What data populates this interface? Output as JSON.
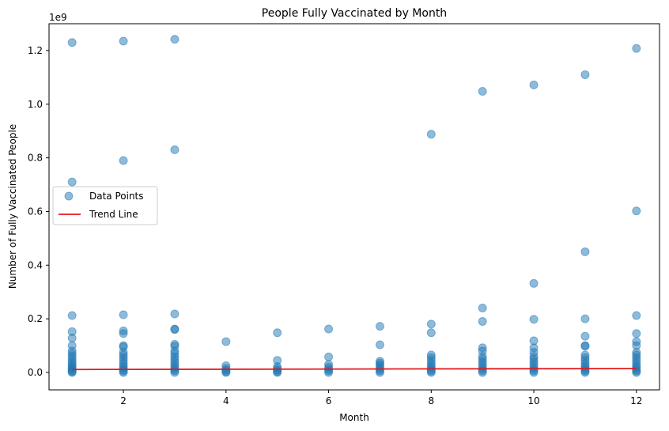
{
  "chart_data": {
    "type": "scatter",
    "title": "People Fully Vaccinated by Month",
    "xlabel": "Month",
    "ylabel": "Number of Fully Vaccinated People",
    "y_offset_label": "1e9",
    "xlim": [
      0.55,
      12.45
    ],
    "ylim": [
      -65000000,
      1300000000
    ],
    "x_ticks": [
      2,
      4,
      6,
      8,
      10,
      12
    ],
    "x_tick_labels": [
      "2",
      "4",
      "6",
      "8",
      "10",
      "12"
    ],
    "y_ticks": [
      0,
      200000000,
      400000000,
      600000000,
      800000000,
      1000000000,
      1200000000
    ],
    "y_tick_labels": [
      "0.0",
      "0.2",
      "0.4",
      "0.6",
      "0.8",
      "1.0",
      "1.2"
    ],
    "grid": false,
    "legend": {
      "placement": "center-left",
      "entries": [
        {
          "label": "Data Points",
          "kind": "marker",
          "color": "#1f77b4"
        },
        {
          "label": "Trend Line",
          "kind": "line",
          "color": "#e41a1c"
        }
      ]
    },
    "series": [
      {
        "name": "Data Points",
        "color": "#1f77b4",
        "points": [
          {
            "x": 1,
            "y": 1230000000
          },
          {
            "x": 1,
            "y": 710000000
          },
          {
            "x": 1,
            "y": 212000000
          },
          {
            "x": 1,
            "y": 152000000
          },
          {
            "x": 1,
            "y": 128000000
          },
          {
            "x": 1,
            "y": 100000000
          },
          {
            "x": 1,
            "y": 80000000
          },
          {
            "x": 1,
            "y": 70000000
          },
          {
            "x": 1,
            "y": 60000000
          },
          {
            "x": 1,
            "y": 50000000
          },
          {
            "x": 1,
            "y": 40000000
          },
          {
            "x": 1,
            "y": 32000000
          },
          {
            "x": 1,
            "y": 25000000
          },
          {
            "x": 1,
            "y": 18000000
          },
          {
            "x": 1,
            "y": 12000000
          },
          {
            "x": 1,
            "y": 7000000
          },
          {
            "x": 1,
            "y": 3000000
          },
          {
            "x": 1,
            "y": 0
          },
          {
            "x": 2,
            "y": 1235000000
          },
          {
            "x": 2,
            "y": 790000000
          },
          {
            "x": 2,
            "y": 215000000
          },
          {
            "x": 2,
            "y": 155000000
          },
          {
            "x": 2,
            "y": 145000000
          },
          {
            "x": 2,
            "y": 100000000
          },
          {
            "x": 2,
            "y": 95000000
          },
          {
            "x": 2,
            "y": 75000000
          },
          {
            "x": 2,
            "y": 65000000
          },
          {
            "x": 2,
            "y": 55000000
          },
          {
            "x": 2,
            "y": 45000000
          },
          {
            "x": 2,
            "y": 35000000
          },
          {
            "x": 2,
            "y": 25000000
          },
          {
            "x": 2,
            "y": 18000000
          },
          {
            "x": 2,
            "y": 10000000
          },
          {
            "x": 2,
            "y": 5000000
          },
          {
            "x": 2,
            "y": 0
          },
          {
            "x": 3,
            "y": 1242000000
          },
          {
            "x": 3,
            "y": 830000000
          },
          {
            "x": 3,
            "y": 218000000
          },
          {
            "x": 3,
            "y": 162000000
          },
          {
            "x": 3,
            "y": 160000000
          },
          {
            "x": 3,
            "y": 105000000
          },
          {
            "x": 3,
            "y": 98000000
          },
          {
            "x": 3,
            "y": 80000000
          },
          {
            "x": 3,
            "y": 70000000
          },
          {
            "x": 3,
            "y": 58000000
          },
          {
            "x": 3,
            "y": 48000000
          },
          {
            "x": 3,
            "y": 38000000
          },
          {
            "x": 3,
            "y": 28000000
          },
          {
            "x": 3,
            "y": 20000000
          },
          {
            "x": 3,
            "y": 12000000
          },
          {
            "x": 3,
            "y": 6000000
          },
          {
            "x": 3,
            "y": 0
          },
          {
            "x": 4,
            "y": 115000000
          },
          {
            "x": 4,
            "y": 25000000
          },
          {
            "x": 4,
            "y": 15000000
          },
          {
            "x": 4,
            "y": 8000000
          },
          {
            "x": 4,
            "y": 3000000
          },
          {
            "x": 4,
            "y": 0
          },
          {
            "x": 5,
            "y": 148000000
          },
          {
            "x": 5,
            "y": 45000000
          },
          {
            "x": 5,
            "y": 22000000
          },
          {
            "x": 5,
            "y": 14000000
          },
          {
            "x": 5,
            "y": 8000000
          },
          {
            "x": 5,
            "y": 3000000
          },
          {
            "x": 5,
            "y": 0
          },
          {
            "x": 6,
            "y": 162000000
          },
          {
            "x": 6,
            "y": 58000000
          },
          {
            "x": 6,
            "y": 30000000
          },
          {
            "x": 6,
            "y": 20000000
          },
          {
            "x": 6,
            "y": 12000000
          },
          {
            "x": 6,
            "y": 6000000
          },
          {
            "x": 6,
            "y": 0
          },
          {
            "x": 7,
            "y": 172000000
          },
          {
            "x": 7,
            "y": 103000000
          },
          {
            "x": 7,
            "y": 42000000
          },
          {
            "x": 7,
            "y": 35000000
          },
          {
            "x": 7,
            "y": 28000000
          },
          {
            "x": 7,
            "y": 20000000
          },
          {
            "x": 7,
            "y": 12000000
          },
          {
            "x": 7,
            "y": 6000000
          },
          {
            "x": 7,
            "y": 0
          },
          {
            "x": 8,
            "y": 888000000
          },
          {
            "x": 8,
            "y": 180000000
          },
          {
            "x": 8,
            "y": 148000000
          },
          {
            "x": 8,
            "y": 65000000
          },
          {
            "x": 8,
            "y": 55000000
          },
          {
            "x": 8,
            "y": 45000000
          },
          {
            "x": 8,
            "y": 35000000
          },
          {
            "x": 8,
            "y": 25000000
          },
          {
            "x": 8,
            "y": 18000000
          },
          {
            "x": 8,
            "y": 10000000
          },
          {
            "x": 8,
            "y": 5000000
          },
          {
            "x": 8,
            "y": 0
          },
          {
            "x": 9,
            "y": 1048000000
          },
          {
            "x": 9,
            "y": 240000000
          },
          {
            "x": 9,
            "y": 190000000
          },
          {
            "x": 9,
            "y": 92000000
          },
          {
            "x": 9,
            "y": 80000000
          },
          {
            "x": 9,
            "y": 60000000
          },
          {
            "x": 9,
            "y": 50000000
          },
          {
            "x": 9,
            "y": 40000000
          },
          {
            "x": 9,
            "y": 30000000
          },
          {
            "x": 9,
            "y": 20000000
          },
          {
            "x": 9,
            "y": 12000000
          },
          {
            "x": 9,
            "y": 6000000
          },
          {
            "x": 9,
            "y": 0
          },
          {
            "x": 10,
            "y": 1072000000
          },
          {
            "x": 10,
            "y": 332000000
          },
          {
            "x": 10,
            "y": 198000000
          },
          {
            "x": 10,
            "y": 118000000
          },
          {
            "x": 10,
            "y": 92000000
          },
          {
            "x": 10,
            "y": 75000000
          },
          {
            "x": 10,
            "y": 60000000
          },
          {
            "x": 10,
            "y": 50000000
          },
          {
            "x": 10,
            "y": 40000000
          },
          {
            "x": 10,
            "y": 30000000
          },
          {
            "x": 10,
            "y": 20000000
          },
          {
            "x": 10,
            "y": 12000000
          },
          {
            "x": 10,
            "y": 6000000
          },
          {
            "x": 10,
            "y": 0
          },
          {
            "x": 11,
            "y": 1110000000
          },
          {
            "x": 11,
            "y": 450000000
          },
          {
            "x": 11,
            "y": 200000000
          },
          {
            "x": 11,
            "y": 135000000
          },
          {
            "x": 11,
            "y": 100000000
          },
          {
            "x": 11,
            "y": 98000000
          },
          {
            "x": 11,
            "y": 65000000
          },
          {
            "x": 11,
            "y": 55000000
          },
          {
            "x": 11,
            "y": 45000000
          },
          {
            "x": 11,
            "y": 35000000
          },
          {
            "x": 11,
            "y": 25000000
          },
          {
            "x": 11,
            "y": 18000000
          },
          {
            "x": 11,
            "y": 10000000
          },
          {
            "x": 11,
            "y": 5000000
          },
          {
            "x": 11,
            "y": 0
          },
          {
            "x": 12,
            "y": 1208000000
          },
          {
            "x": 12,
            "y": 602000000
          },
          {
            "x": 12,
            "y": 212000000
          },
          {
            "x": 12,
            "y": 145000000
          },
          {
            "x": 12,
            "y": 115000000
          },
          {
            "x": 12,
            "y": 100000000
          },
          {
            "x": 12,
            "y": 75000000
          },
          {
            "x": 12,
            "y": 65000000
          },
          {
            "x": 12,
            "y": 55000000
          },
          {
            "x": 12,
            "y": 45000000
          },
          {
            "x": 12,
            "y": 35000000
          },
          {
            "x": 12,
            "y": 25000000
          },
          {
            "x": 12,
            "y": 18000000
          },
          {
            "x": 12,
            "y": 10000000
          },
          {
            "x": 12,
            "y": 5000000
          },
          {
            "x": 12,
            "y": 0
          }
        ]
      },
      {
        "name": "Trend Line",
        "color": "#e41a1c",
        "points": [
          {
            "x": 1,
            "y": 11000000
          },
          {
            "x": 12,
            "y": 14500000
          }
        ]
      }
    ]
  }
}
